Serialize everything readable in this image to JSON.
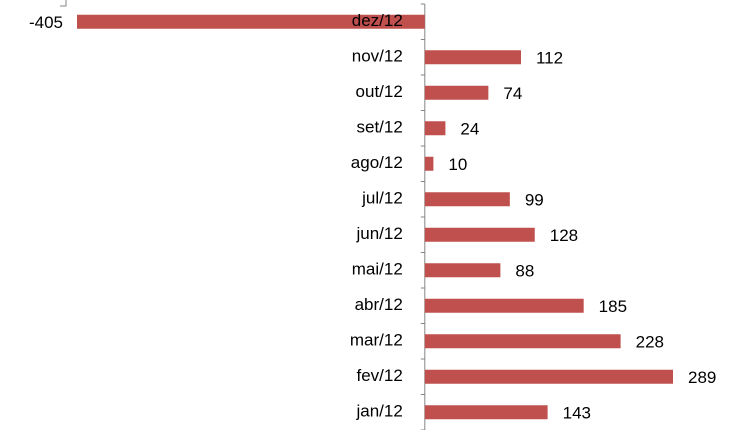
{
  "chart_data": {
    "type": "bar",
    "orientation": "horizontal",
    "categories": [
      "jan/12",
      "fev/12",
      "mar/12",
      "abr/12",
      "mai/12",
      "jun/12",
      "jul/12",
      "ago/12",
      "set/12",
      "out/12",
      "nov/12",
      "dez/12"
    ],
    "values": [
      143,
      289,
      228,
      185,
      88,
      128,
      99,
      10,
      24,
      74,
      112,
      -405
    ],
    "color": "#c0504d"
  }
}
